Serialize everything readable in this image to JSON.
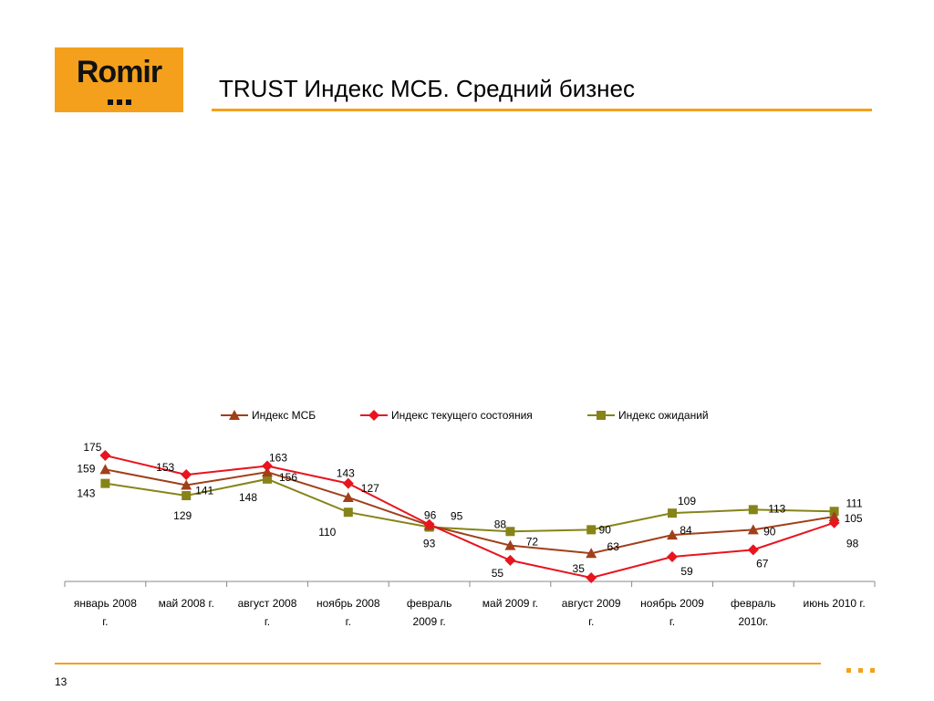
{
  "logo": {
    "text": "Romir"
  },
  "title": "TRUST Индекс МСБ. Средний бизнес",
  "page_number": "13",
  "chart_data": {
    "type": "line",
    "categories": [
      [
        "январь 2008",
        "г."
      ],
      [
        "май 2008 г."
      ],
      [
        "август 2008",
        "г."
      ],
      [
        "ноябрь 2008",
        "г."
      ],
      [
        "февраль",
        "2009 г."
      ],
      [
        "май 2009 г."
      ],
      [
        "август 2009",
        "г."
      ],
      [
        "ноябрь 2009",
        "г."
      ],
      [
        "февраль",
        "2010г."
      ],
      [
        "июнь 2010 г."
      ]
    ],
    "series": [
      {
        "name": "Индекс МСБ",
        "color": "#a0401a",
        "marker": "triangle",
        "values": [
          159,
          141,
          156,
          127,
          95,
          72,
          63,
          84,
          90,
          105
        ]
      },
      {
        "name": "Индекс текущего состояния",
        "color": "#e8141e",
        "marker": "diamond",
        "values": [
          175,
          153,
          163,
          143,
          96,
          55,
          35,
          59,
          67,
          98
        ]
      },
      {
        "name": "Индекс ожиданий",
        "color": "#868418",
        "marker": "square",
        "values": [
          143,
          129,
          148,
          110,
          93,
          88,
          90,
          109,
          113,
          111
        ]
      }
    ],
    "ylim": [
      35,
      175
    ],
    "legend_position": "top",
    "grid": false
  }
}
